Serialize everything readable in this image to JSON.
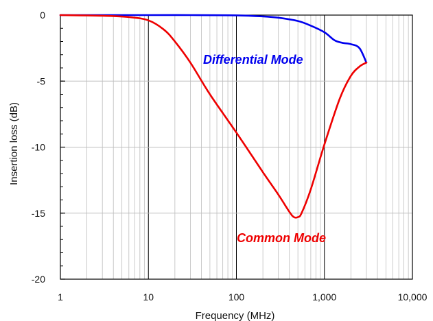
{
  "chart_data": {
    "type": "line",
    "xlabel": "Frequency (MHz)",
    "ylabel": "Insertion loss (dB)",
    "x_scale": "log",
    "xlim": [
      1,
      10000
    ],
    "ylim": [
      -20,
      0
    ],
    "x_ticks": [
      1,
      10,
      100,
      1000,
      10000
    ],
    "x_tick_labels": [
      "1",
      "10",
      "100",
      "1,000",
      "10,000"
    ],
    "y_ticks": [
      0,
      -5,
      -10,
      -15,
      -20
    ],
    "y_tick_labels": [
      "0",
      "-5",
      "-10",
      "-15",
      "-20"
    ],
    "grid": true,
    "series": [
      {
        "name": "Differential Mode",
        "color": "#0000ee",
        "x": [
          1,
          10,
          30,
          100,
          200,
          300,
          500,
          700,
          1000,
          1300,
          1600,
          2000,
          2500,
          3000
        ],
        "y": [
          0,
          0,
          0,
          -0.02,
          -0.1,
          -0.2,
          -0.45,
          -0.8,
          -1.3,
          -1.9,
          -2.1,
          -2.2,
          -2.5,
          -3.6
        ]
      },
      {
        "name": "Common Mode",
        "color": "#ee0000",
        "x": [
          1,
          3,
          6,
          10,
          15,
          20,
          30,
          50,
          100,
          200,
          300,
          400,
          450,
          500,
          550,
          700,
          1000,
          1500,
          2000,
          2500,
          3000
        ],
        "y": [
          0,
          -0.05,
          -0.15,
          -0.4,
          -1.1,
          -2.0,
          -3.6,
          -6.0,
          -8.9,
          -11.9,
          -13.6,
          -14.9,
          -15.3,
          -15.3,
          -15.0,
          -13.2,
          -9.8,
          -6.3,
          -4.6,
          -3.9,
          -3.6
        ]
      }
    ],
    "annotations": [
      {
        "text": "Differential Mode",
        "color": "#0000ee"
      },
      {
        "text": "Common Mode",
        "color": "#ee0000"
      }
    ]
  }
}
